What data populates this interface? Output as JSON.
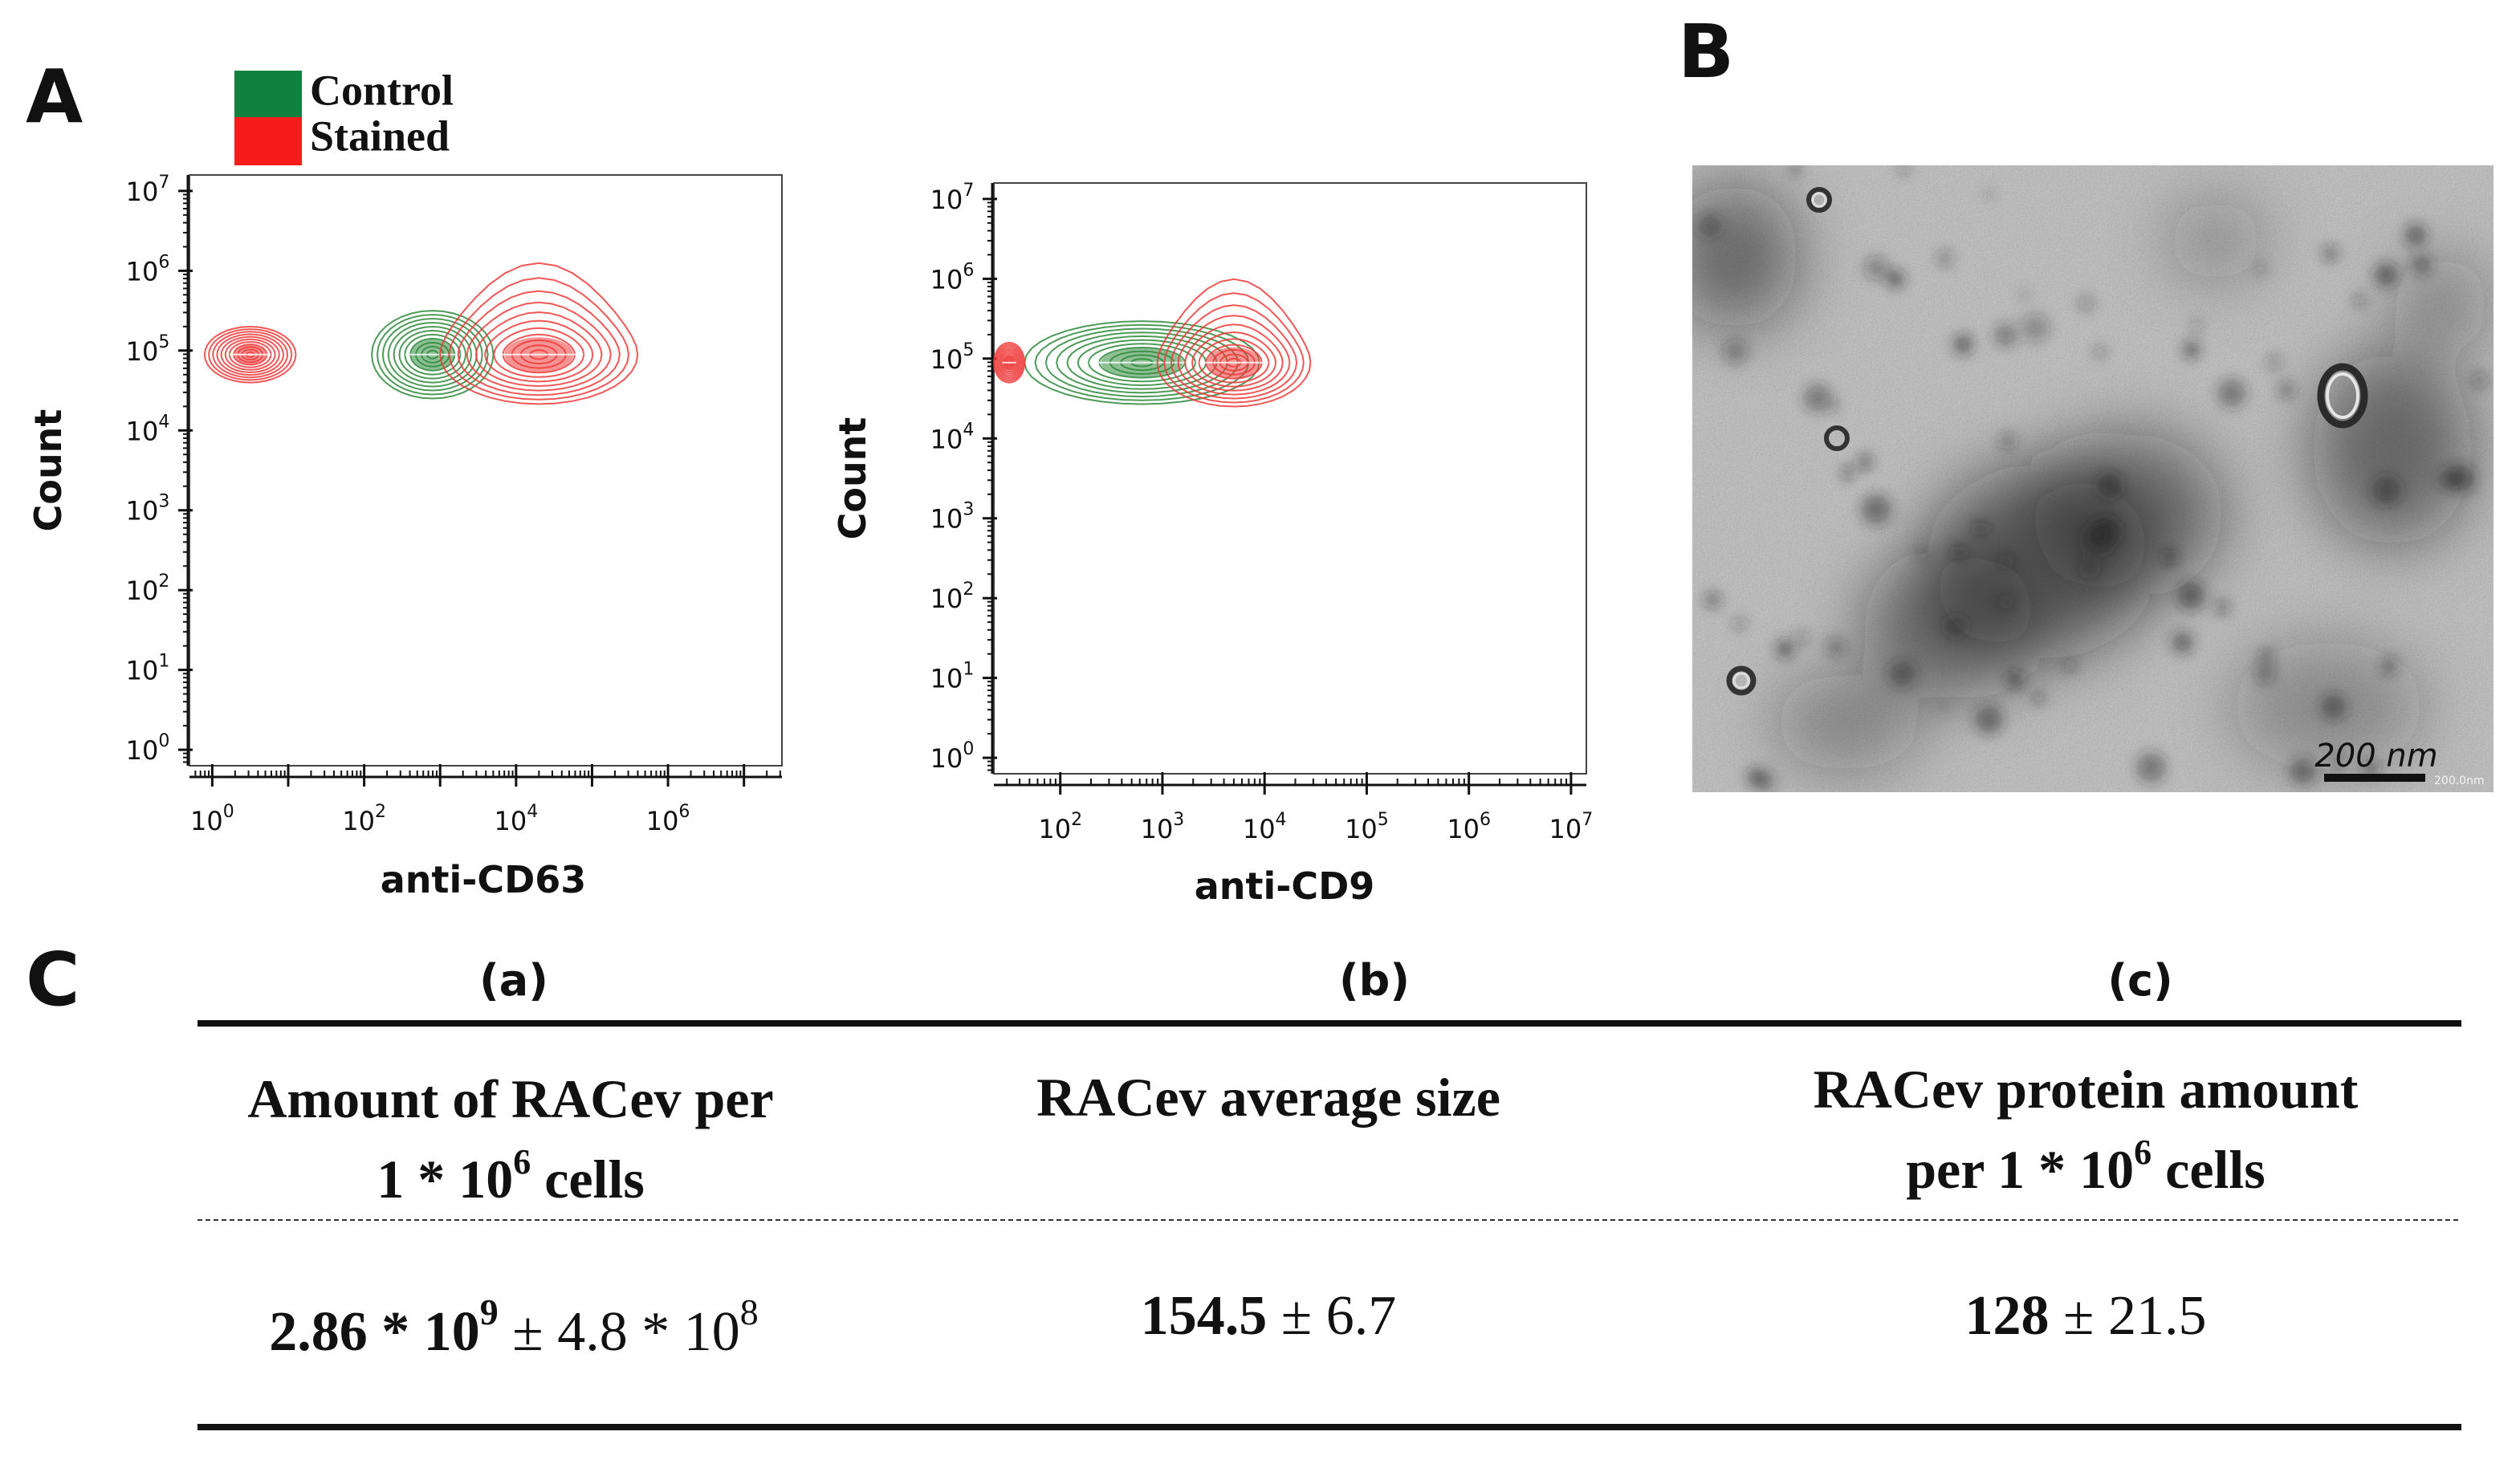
{
  "panels": {
    "a": "A",
    "b": "B",
    "c": "C"
  },
  "legend": [
    {
      "label": "Control",
      "color": "#12813f"
    },
    {
      "label": "Stained",
      "color": "#f71b1b"
    }
  ],
  "chart_data": [
    {
      "type": "contour",
      "id": "cd63",
      "xlabel": "anti-CD63",
      "ylabel": "Count",
      "x_scale": "log",
      "y_scale": "log",
      "xlim_log10": [
        -0.3,
        7.5
      ],
      "ylim_log10": [
        -0.2,
        7.2
      ],
      "x_ticks": [
        {
          "base": "10",
          "exp": "0",
          "log": 0
        },
        {
          "base": "10",
          "exp": "2",
          "log": 2
        },
        {
          "base": "10",
          "exp": "4",
          "log": 4
        },
        {
          "base": "10",
          "exp": "6",
          "log": 6
        }
      ],
      "y_ticks": [
        {
          "base": "10",
          "exp": "0",
          "log": 0
        },
        {
          "base": "10",
          "exp": "1",
          "log": 1
        },
        {
          "base": "10",
          "exp": "2",
          "log": 2
        },
        {
          "base": "10",
          "exp": "3",
          "log": 3
        },
        {
          "base": "10",
          "exp": "4",
          "log": 4
        },
        {
          "base": "10",
          "exp": "5",
          "log": 5
        },
        {
          "base": "10",
          "exp": "6",
          "log": 6
        },
        {
          "base": "10",
          "exp": "7",
          "log": 7
        }
      ],
      "series": [
        {
          "name": "Control",
          "color": "#2f8a3c",
          "clusters": [
            {
              "cx": 2.9,
              "cy": 4.95,
              "rx": 0.8,
              "ry": 0.55,
              "tail": 0
            }
          ]
        },
        {
          "name": "Stained",
          "color": "#ef3a3a",
          "clusters": [
            {
              "cx": 0.5,
              "cy": 4.95,
              "rx": 0.6,
              "ry": 0.35,
              "tail": 0
            },
            {
              "cx": 4.3,
              "cy": 4.95,
              "rx": 1.3,
              "ry": 0.62,
              "tail": 0.85
            }
          ]
        }
      ]
    },
    {
      "type": "contour",
      "id": "cd9",
      "xlabel": "anti-CD9",
      "ylabel": "Count",
      "x_scale": "log",
      "y_scale": "log",
      "xlim_log10": [
        1.35,
        7.15
      ],
      "ylim_log10": [
        -0.2,
        7.2
      ],
      "x_ticks": [
        {
          "base": "10",
          "exp": "2",
          "log": 2
        },
        {
          "base": "10",
          "exp": "3",
          "log": 3
        },
        {
          "base": "10",
          "exp": "4",
          "log": 4
        },
        {
          "base": "10",
          "exp": "5",
          "log": 5
        },
        {
          "base": "10",
          "exp": "6",
          "log": 6
        },
        {
          "base": "10",
          "exp": "7",
          "log": 7
        }
      ],
      "y_ticks": [
        {
          "base": "10",
          "exp": "0",
          "log": 0
        },
        {
          "base": "10",
          "exp": "1",
          "log": 1
        },
        {
          "base": "10",
          "exp": "2",
          "log": 2
        },
        {
          "base": "10",
          "exp": "3",
          "log": 3
        },
        {
          "base": "10",
          "exp": "4",
          "log": 4
        },
        {
          "base": "10",
          "exp": "5",
          "log": 5
        },
        {
          "base": "10",
          "exp": "6",
          "log": 6
        },
        {
          "base": "10",
          "exp": "7",
          "log": 7
        }
      ],
      "series": [
        {
          "name": "Control",
          "color": "#2f8a3c",
          "clusters": [
            {
              "cx": 2.8,
              "cy": 4.95,
              "rx": 1.15,
              "ry": 0.52,
              "tail": 0
            }
          ]
        },
        {
          "name": "Stained",
          "color": "#ef3a3a",
          "clusters": [
            {
              "cx": 1.5,
              "cy": 4.95,
              "rx": 0.15,
              "ry": 0.25,
              "tail": 0
            },
            {
              "cx": 3.7,
              "cy": 4.95,
              "rx": 0.75,
              "ry": 0.55,
              "tail": 0.9
            }
          ]
        }
      ]
    }
  ],
  "micrograph": {
    "scale_bar": "200 nm",
    "scale_bar_small": "200.0nm"
  },
  "table": {
    "columns": [
      {
        "letter": "(a)",
        "header_lines": [
          "Amount of RACev per",
          "1 * 10",
          "6",
          " cells"
        ],
        "value_bold": "2.86 * 10",
        "value_bold_sup": "9",
        "value_rest": " ± 4.8 * 10",
        "value_rest_sup": "8"
      },
      {
        "letter": "(b)",
        "header_lines": [
          "RACev average size",
          "",
          "",
          ""
        ],
        "value_bold": "154.5",
        "value_bold_sup": "",
        "value_rest": " ± 6.7",
        "value_rest_sup": ""
      },
      {
        "letter": "(c)",
        "header_lines": [
          "RACev protein amount",
          "per 1 * 10",
          "6",
          " cells"
        ],
        "value_bold": "128",
        "value_bold_sup": "",
        "value_rest": " ± 21.5",
        "value_rest_sup": ""
      }
    ]
  }
}
